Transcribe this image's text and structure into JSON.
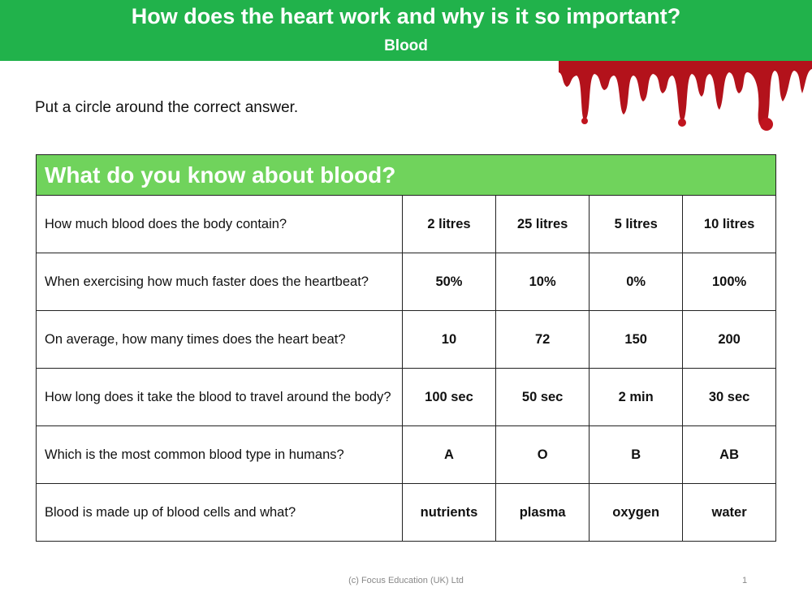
{
  "header": {
    "title": "How does the heart work and why is it so important?",
    "subtitle": "Blood"
  },
  "instruction": "Put a circle around the correct answer.",
  "table": {
    "title": "What do you know about blood?",
    "rows": [
      {
        "question": "How much blood does the body contain?",
        "options": [
          "2 litres",
          "25 litres",
          "5 litres",
          "10 litres"
        ]
      },
      {
        "question": "When exercising how much faster does the heartbeat?",
        "options": [
          "50%",
          "10%",
          "0%",
          "100%"
        ]
      },
      {
        "question": "On average, how many times does the heart beat?",
        "options": [
          "10",
          "72",
          "150",
          "200"
        ]
      },
      {
        "question": "How long does it take the blood to travel around the body?",
        "options": [
          "100 sec",
          "50 sec",
          "2 min",
          "30 sec"
        ]
      },
      {
        "question": "Which is the most common blood type in humans?",
        "options": [
          "A",
          "O",
          "B",
          "AB"
        ]
      },
      {
        "question": "Blood is made up of blood cells and what?",
        "options": [
          "nutrients",
          "plasma",
          "oxygen",
          "water"
        ]
      }
    ]
  },
  "footer": {
    "copyright": "(c) Focus Education (UK) Ltd",
    "page": "1"
  }
}
